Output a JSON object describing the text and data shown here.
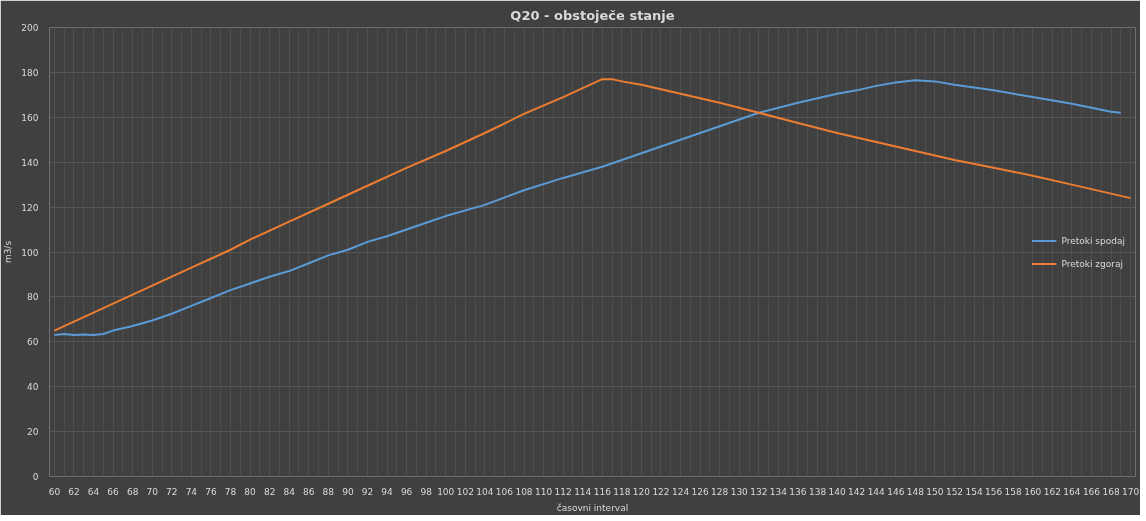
{
  "chart_data": {
    "type": "line",
    "title": "Q20 - obstoječe stanje",
    "xlabel": "časovni interval",
    "ylabel": "m3/s",
    "series": [
      {
        "name": "Pretoki spodaj",
        "color": "#5b9bd5",
        "x": [
          60,
          61,
          62,
          63,
          64,
          65,
          66,
          68,
          70,
          72,
          74,
          76,
          78,
          80,
          82,
          84,
          86,
          88,
          90,
          92,
          94,
          96,
          98,
          100,
          104,
          108,
          112,
          116,
          120,
          124,
          128,
          132,
          136,
          140,
          142,
          144,
          146,
          148,
          150,
          152,
          156,
          160,
          164,
          168,
          169
        ],
        "values": [
          63,
          63.5,
          63,
          63.3,
          63,
          63.5,
          65,
          67,
          69.5,
          72.5,
          76,
          79.5,
          83,
          86,
          89,
          91.5,
          95,
          98.5,
          101,
          104.5,
          107,
          110,
          113,
          116,
          121,
          127.5,
          133,
          138,
          144,
          150,
          156,
          162,
          166.5,
          170.5,
          172,
          174,
          175.5,
          176.5,
          176,
          174.5,
          172,
          169,
          166,
          162.5,
          162
        ]
      },
      {
        "name": "Pretoki zgoraj",
        "color": "#ed7d31",
        "x": [
          60,
          62,
          64,
          66,
          68,
          70,
          72,
          74,
          76,
          78,
          80,
          84,
          88,
          92,
          96,
          100,
          104,
          108,
          112,
          116,
          117,
          118,
          120,
          124,
          128,
          132,
          136,
          140,
          144,
          148,
          152,
          156,
          160,
          164,
          168,
          170
        ],
        "values": [
          65,
          69,
          73,
          77,
          81,
          85,
          89,
          93,
          97,
          101,
          105.5,
          113.5,
          121.5,
          129.5,
          137.5,
          145,
          153,
          161.5,
          169,
          177,
          177,
          176,
          174.5,
          170.5,
          166.5,
          162,
          157.5,
          153,
          149,
          145,
          141,
          137.5,
          134,
          130,
          126,
          124
        ]
      }
    ],
    "xlim": [
      59.5,
      170.5
    ],
    "xticks": [
      60,
      62,
      64,
      66,
      68,
      70,
      72,
      74,
      76,
      78,
      80,
      82,
      84,
      86,
      88,
      90,
      92,
      94,
      96,
      98,
      100,
      102,
      104,
      106,
      108,
      110,
      112,
      114,
      116,
      118,
      120,
      122,
      124,
      126,
      128,
      130,
      132,
      134,
      136,
      138,
      140,
      142,
      144,
      146,
      148,
      150,
      152,
      154,
      156,
      158,
      160,
      162,
      164,
      166,
      168,
      170
    ],
    "ylim": [
      0,
      200
    ],
    "yticks": [
      0,
      20,
      40,
      60,
      80,
      100,
      120,
      140,
      160,
      180,
      200
    ],
    "grid": true,
    "legend": "right",
    "marker": "none",
    "line_style": "solid"
  }
}
